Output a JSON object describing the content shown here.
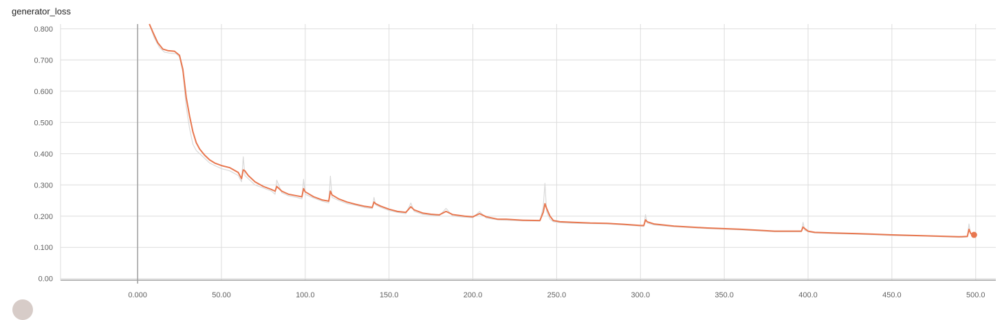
{
  "chart_data": {
    "type": "line",
    "title": "generator_loss",
    "xlabel": "",
    "ylabel": "",
    "xlim": [
      -46,
      512
    ],
    "ylim": [
      -0.005,
      0.815
    ],
    "x_ticks": [
      "0.000",
      "50.00",
      "100.0",
      "150.0",
      "200.0",
      "250.0",
      "300.0",
      "350.0",
      "400.0",
      "450.0",
      "500.0"
    ],
    "y_ticks": [
      "0.00",
      "0.100",
      "0.200",
      "0.300",
      "0.400",
      "0.500",
      "0.600",
      "0.700",
      "0.800"
    ],
    "grid": true,
    "colors": {
      "smoothed": "#e8774f",
      "raw": "#d9d9d9",
      "grid": "#dcdcdc",
      "axis": "#9e9e9e"
    },
    "series": [
      {
        "role": "smoothed",
        "x": [
          7,
          9,
          12,
          15,
          18,
          22,
          25,
          27,
          29,
          31,
          33,
          35,
          37,
          40,
          43,
          46,
          50,
          55,
          60,
          62,
          63,
          64,
          66,
          70,
          75,
          80,
          82,
          83,
          86,
          90,
          95,
          98,
          99,
          100,
          105,
          110,
          114,
          115,
          116,
          120,
          125,
          130,
          135,
          140,
          141,
          142,
          145,
          150,
          155,
          160,
          163,
          165,
          170,
          175,
          180,
          184,
          188,
          195,
          200,
          204,
          208,
          215,
          220,
          230,
          240,
          242,
          243,
          244,
          246,
          248,
          252,
          260,
          270,
          280,
          290,
          300,
          302,
          303,
          304,
          308,
          320,
          340,
          360,
          380,
          396,
          397,
          398,
          400,
          404,
          415,
          430,
          450,
          470,
          490,
          495,
          496,
          497,
          499
        ],
        "values": [
          0.815,
          0.79,
          0.755,
          0.735,
          0.73,
          0.728,
          0.715,
          0.67,
          0.58,
          0.52,
          0.47,
          0.435,
          0.415,
          0.395,
          0.38,
          0.37,
          0.362,
          0.355,
          0.34,
          0.32,
          0.348,
          0.345,
          0.33,
          0.31,
          0.295,
          0.285,
          0.28,
          0.295,
          0.28,
          0.27,
          0.265,
          0.262,
          0.288,
          0.278,
          0.262,
          0.252,
          0.248,
          0.28,
          0.268,
          0.255,
          0.245,
          0.238,
          0.232,
          0.228,
          0.245,
          0.24,
          0.232,
          0.222,
          0.215,
          0.212,
          0.23,
          0.22,
          0.21,
          0.206,
          0.204,
          0.215,
          0.205,
          0.2,
          0.198,
          0.208,
          0.198,
          0.19,
          0.19,
          0.187,
          0.186,
          0.212,
          0.24,
          0.225,
          0.2,
          0.186,
          0.182,
          0.18,
          0.178,
          0.177,
          0.174,
          0.17,
          0.17,
          0.188,
          0.182,
          0.175,
          0.168,
          0.162,
          0.158,
          0.152,
          0.152,
          0.165,
          0.16,
          0.152,
          0.148,
          0.146,
          0.144,
          0.14,
          0.137,
          0.134,
          0.135,
          0.158,
          0.145,
          0.14
        ]
      },
      {
        "role": "raw",
        "x": [
          7,
          10,
          13,
          16,
          19,
          23,
          25,
          27,
          29,
          31,
          33,
          35,
          37,
          40,
          43,
          46,
          50,
          55,
          60,
          62,
          63,
          64,
          66,
          70,
          75,
          80,
          82,
          83,
          86,
          90,
          95,
          98,
          99,
          100,
          105,
          110,
          114,
          115,
          116,
          120,
          125,
          130,
          135,
          140,
          141,
          142,
          145,
          150,
          155,
          160,
          163,
          165,
          170,
          175,
          180,
          184,
          188,
          195,
          200,
          204,
          208,
          215,
          220,
          230,
          240,
          242,
          243,
          244,
          246,
          248,
          252,
          260,
          270,
          280,
          290,
          300,
          302,
          303,
          304,
          308,
          320,
          340,
          360,
          380,
          396,
          397,
          398,
          400,
          404,
          415,
          430,
          450,
          470,
          490,
          495,
          496,
          497,
          499
        ],
        "values": [
          0.815,
          0.77,
          0.74,
          0.725,
          0.722,
          0.72,
          0.71,
          0.66,
          0.55,
          0.48,
          0.43,
          0.41,
          0.4,
          0.385,
          0.37,
          0.362,
          0.352,
          0.345,
          0.33,
          0.31,
          0.39,
          0.33,
          0.32,
          0.3,
          0.29,
          0.28,
          0.27,
          0.315,
          0.275,
          0.265,
          0.26,
          0.255,
          0.318,
          0.27,
          0.258,
          0.248,
          0.242,
          0.328,
          0.26,
          0.25,
          0.24,
          0.235,
          0.228,
          0.224,
          0.26,
          0.236,
          0.228,
          0.218,
          0.212,
          0.208,
          0.242,
          0.215,
          0.206,
          0.203,
          0.201,
          0.225,
          0.2,
          0.197,
          0.195,
          0.215,
          0.194,
          0.188,
          0.187,
          0.185,
          0.184,
          0.23,
          0.305,
          0.215,
          0.19,
          0.182,
          0.179,
          0.177,
          0.176,
          0.175,
          0.172,
          0.168,
          0.167,
          0.205,
          0.178,
          0.172,
          0.166,
          0.16,
          0.156,
          0.15,
          0.15,
          0.18,
          0.155,
          0.15,
          0.146,
          0.144,
          0.142,
          0.138,
          0.136,
          0.132,
          0.133,
          0.175,
          0.142,
          0.138
        ]
      }
    ]
  }
}
